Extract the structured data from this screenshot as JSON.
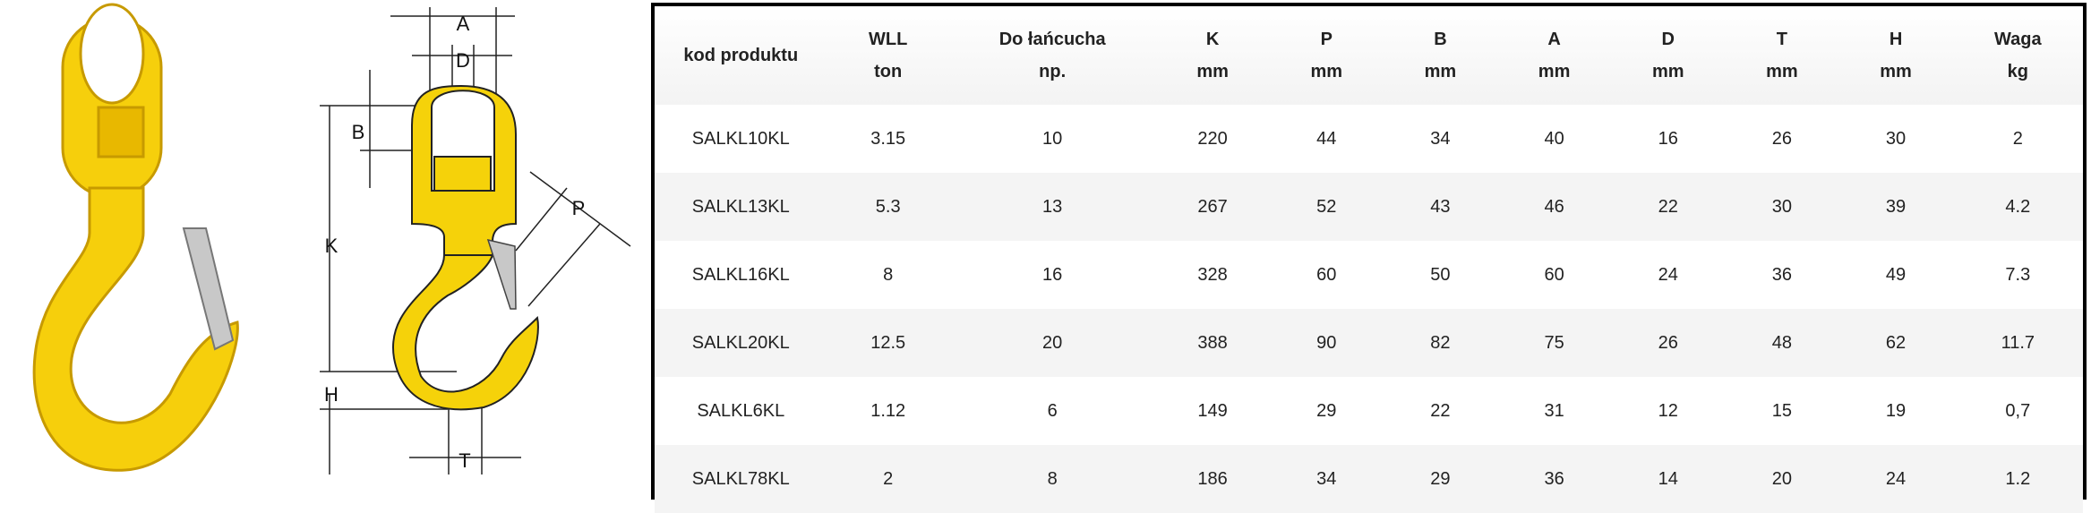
{
  "product_table": {
    "headers": [
      {
        "name": "kod produktu",
        "unit": ""
      },
      {
        "name": "WLL",
        "unit": "ton"
      },
      {
        "name": "Do łańcucha",
        "unit": "np."
      },
      {
        "name": "K",
        "unit": "mm"
      },
      {
        "name": "P",
        "unit": "mm"
      },
      {
        "name": "B",
        "unit": "mm"
      },
      {
        "name": "A",
        "unit": "mm"
      },
      {
        "name": "D",
        "unit": "mm"
      },
      {
        "name": "T",
        "unit": "mm"
      },
      {
        "name": "H",
        "unit": "mm"
      },
      {
        "name": "Waga",
        "unit": "kg"
      }
    ],
    "rows": [
      [
        "SALKL10KL",
        "3.15",
        "10",
        "220",
        "44",
        "34",
        "40",
        "16",
        "26",
        "30",
        "2"
      ],
      [
        "SALKL13KL",
        "5.3",
        "13",
        "267",
        "52",
        "43",
        "46",
        "22",
        "30",
        "39",
        "4.2"
      ],
      [
        "SALKL16KL",
        "8",
        "16",
        "328",
        "60",
        "50",
        "60",
        "24",
        "36",
        "49",
        "7.3"
      ],
      [
        "SALKL20KL",
        "12.5",
        "20",
        "388",
        "90",
        "82",
        "75",
        "26",
        "48",
        "62",
        "11.7"
      ],
      [
        "SALKL6KL",
        "1.12",
        "6",
        "149",
        "29",
        "22",
        "31",
        "12",
        "15",
        "19",
        "0,7"
      ],
      [
        "SALKL78KL",
        "2",
        "8",
        "186",
        "34",
        "29",
        "36",
        "14",
        "20",
        "24",
        "1.2"
      ]
    ]
  },
  "diagram": {
    "labels": {
      "A": "A",
      "D": "D",
      "B": "B",
      "K": "K",
      "P": "P",
      "H": "H",
      "T": "T"
    }
  },
  "colors": {
    "hook_yellow": "#f5d20a",
    "latch_gray": "#b8b8b8",
    "border": "#000000"
  }
}
